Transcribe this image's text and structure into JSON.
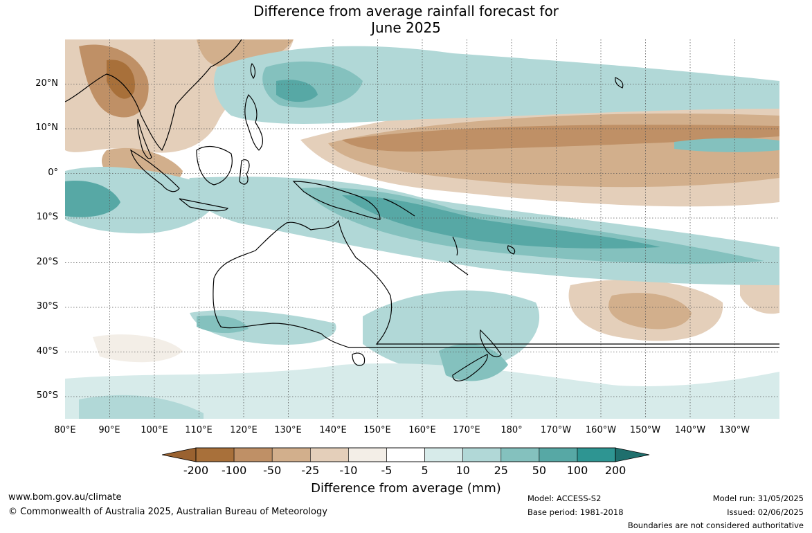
{
  "title": {
    "line1": "Difference from average rainfall forecast for",
    "line2": "June 2025"
  },
  "lat_labels": [
    "20°N",
    "10°N",
    "0°",
    "10°S",
    "20°S",
    "30°S",
    "40°S",
    "50°S"
  ],
  "lon_labels": [
    "80°E",
    "90°E",
    "100°E",
    "110°E",
    "120°E",
    "130°E",
    "140°E",
    "150°E",
    "160°E",
    "170°E",
    "180°",
    "170°W",
    "160°W",
    "150°W",
    "140°W",
    "130°W"
  ],
  "colorbar": {
    "tick_labels": [
      "-200",
      "-100",
      "-50",
      "-25",
      "-10",
      "-5",
      "5",
      "10",
      "25",
      "50",
      "100",
      "200"
    ],
    "colors": [
      "#a8703a",
      "#bf9066",
      "#d2af8c",
      "#e4cfba",
      "#f3eee7",
      "#ffffff",
      "#d7ebea",
      "#b1d8d7",
      "#84c1be",
      "#57a8a5",
      "#2e9592",
      "#217a78"
    ],
    "under_color": "#9a6230",
    "over_color": "#1f6f6d",
    "title": "Difference from average (mm)"
  },
  "footer": {
    "website": "www.bom.gov.au/climate",
    "copyright": "© Commonwealth of Australia 2025, Australian Bureau of Meteorology",
    "model": "Model: ACCESS-S2",
    "base_period": "Base period: 1981-2018",
    "model_run": "Model run: 31/05/2025",
    "issued": "Issued: 02/06/2025",
    "disclaimer": "Boundaries are not considered authoritative"
  }
}
